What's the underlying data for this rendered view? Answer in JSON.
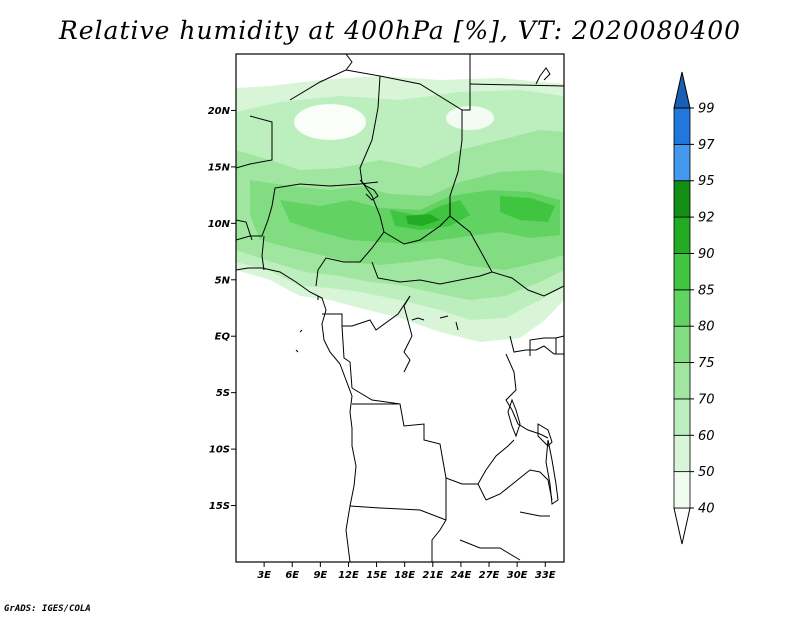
{
  "title": "Relative humidity at 400hPa [%], VT: 2020080400",
  "credit": "GrADS: IGES/COLA",
  "map": {
    "lon_range": [
      0,
      35
    ],
    "lat_range": [
      -20,
      25
    ],
    "lat_ticks": [
      {
        "value": 20,
        "label": "20N"
      },
      {
        "value": 15,
        "label": "15N"
      },
      {
        "value": 10,
        "label": "10N"
      },
      {
        "value": 5,
        "label": "5N"
      },
      {
        "value": 0,
        "label": "EQ"
      },
      {
        "value": -5,
        "label": "5S"
      },
      {
        "value": -10,
        "label": "10S"
      },
      {
        "value": -15,
        "label": "15S"
      }
    ],
    "lon_ticks": [
      {
        "value": 3,
        "label": "3E"
      },
      {
        "value": 6,
        "label": "6E"
      },
      {
        "value": 9,
        "label": "9E"
      },
      {
        "value": 12,
        "label": "12E"
      },
      {
        "value": 15,
        "label": "15E"
      },
      {
        "value": 18,
        "label": "18E"
      },
      {
        "value": 21,
        "label": "21E"
      },
      {
        "value": 24,
        "label": "24E"
      },
      {
        "value": 27,
        "label": "27E"
      },
      {
        "value": 30,
        "label": "30E"
      },
      {
        "value": 33,
        "label": "33E"
      }
    ]
  },
  "colorbar": {
    "levels": [
      {
        "label": "40",
        "color": "#f0fcf0"
      },
      {
        "label": "50",
        "color": "#d8f5d8"
      },
      {
        "label": "60",
        "color": "#bdeebd"
      },
      {
        "label": "70",
        "color": "#a0e6a0"
      },
      {
        "label": "75",
        "color": "#82dc82"
      },
      {
        "label": "80",
        "color": "#62d262"
      },
      {
        "label": "85",
        "color": "#3fc53f"
      },
      {
        "label": "90",
        "color": "#24ab24"
      },
      {
        "label": "92",
        "color": "#139013"
      },
      {
        "label": "95",
        "color": "#4499ee"
      },
      {
        "label": "97",
        "color": "#2277dd"
      },
      {
        "label": "99",
        "color": "#1155bb"
      }
    ],
    "below_color": "#ffffff",
    "above_color": "#1a5fb4"
  }
}
